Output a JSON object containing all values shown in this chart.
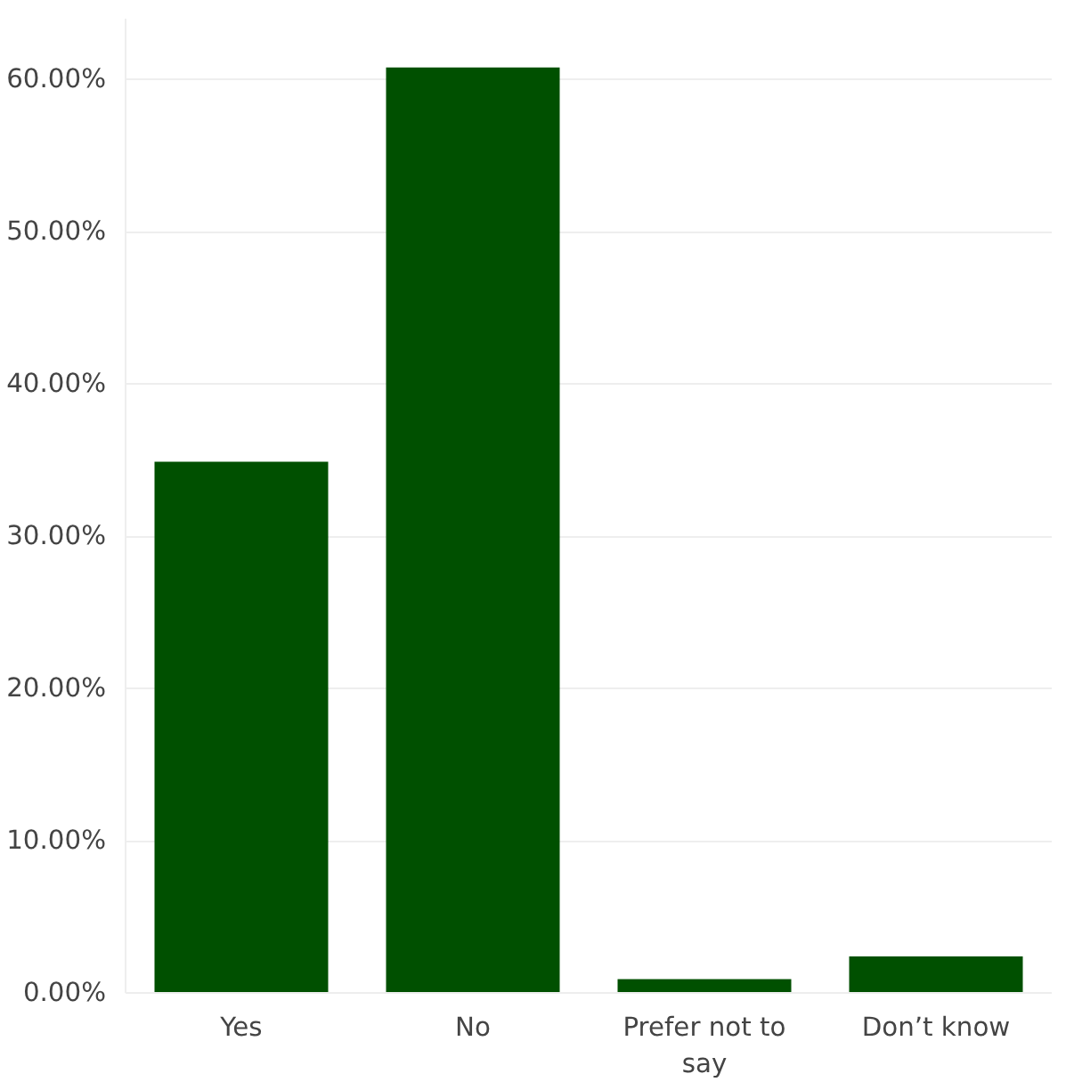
{
  "chart_data": {
    "type": "bar",
    "categories": [
      "Yes",
      "No",
      "Prefer not to say",
      "Don’t know"
    ],
    "values": [
      34.9,
      60.8,
      0.9,
      2.4
    ],
    "color": "#005000",
    "ylim": [
      0,
      64
    ],
    "yticks": [
      {
        "value": 0,
        "label": "0.00%"
      },
      {
        "value": 10,
        "label": "10.00%"
      },
      {
        "value": 20,
        "label": "20.00%"
      },
      {
        "value": 30,
        "label": "30.00%"
      },
      {
        "value": 40,
        "label": "40.00%"
      },
      {
        "value": 50,
        "label": "50.00%"
      },
      {
        "value": 60,
        "label": "60.00%"
      }
    ],
    "grid": "y"
  }
}
